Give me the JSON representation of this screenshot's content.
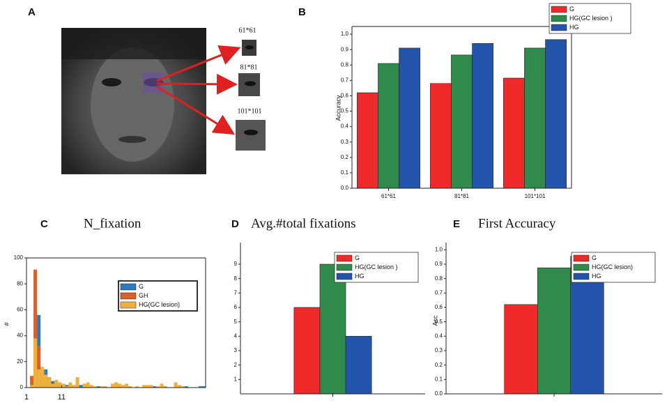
{
  "figure": {
    "panel_labels": [
      "A",
      "B",
      "C",
      "D",
      "E"
    ],
    "image_labels": [
      "61*61",
      "81*81",
      "101*101"
    ]
  },
  "chart_data": [
    {
      "type": "bar",
      "ylabel": "Accuracy",
      "categories": [
        "61*61",
        "81*81",
        "101*101"
      ],
      "series": [
        {
          "name": "G",
          "color": "#ee2a2a",
          "values": [
            0.62,
            0.68,
            0.715
          ]
        },
        {
          "name": "HG(GC lesion  )",
          "color": "#2f8a4c",
          "values": [
            0.81,
            0.865,
            0.91
          ]
        },
        {
          "name": "HG",
          "color": "#2254ac",
          "values": [
            0.91,
            0.94,
            0.965
          ]
        }
      ],
      "ylim": [
        0,
        1.05
      ],
      "yticks": [
        {
          "value": 0,
          "label": "0.0"
        },
        0.1,
        0.2,
        0.3,
        0.4,
        0.5,
        0.6,
        0.7,
        0.8,
        0.9,
        {
          "value": 1,
          "label": "1.0"
        }
      ]
    },
    {
      "type": "histogram",
      "title": "N_fixation",
      "ylabel": "#",
      "bins": [
        1,
        2,
        3,
        4,
        5,
        6,
        7,
        8,
        9,
        10,
        11,
        12,
        13,
        14,
        15,
        16,
        17,
        18,
        19,
        20,
        21,
        22,
        23,
        24,
        25,
        26,
        27,
        28,
        29,
        30,
        31,
        32,
        33,
        34,
        35,
        36,
        37,
        38,
        39,
        40,
        41,
        42,
        43,
        44,
        45,
        46,
        47,
        48,
        49,
        50,
        51,
        52
      ],
      "series": [
        {
          "name": "G",
          "color": "#2b7bbf",
          "values": [
            0,
            0,
            0,
            56,
            3,
            14,
            8,
            5,
            3,
            4,
            2,
            2,
            1,
            1,
            0,
            2,
            1,
            0,
            1,
            0,
            1,
            1,
            0,
            0,
            0,
            1,
            0,
            0,
            1,
            1,
            0,
            0,
            0,
            1,
            0,
            1,
            1,
            0,
            0,
            1,
            0,
            0,
            0,
            0,
            1,
            1,
            0,
            0,
            0,
            1,
            1
          ]
        },
        {
          "name": "GH",
          "color": "#d9602b",
          "values": [
            0,
            9,
            91,
            32,
            6,
            2,
            1,
            0,
            0,
            0,
            0,
            0,
            0,
            0,
            0,
            0,
            0,
            0,
            0,
            0,
            0,
            0,
            0,
            0,
            0,
            0,
            0,
            0,
            0,
            0,
            0,
            0,
            0,
            0,
            0,
            0,
            0,
            0,
            0,
            0,
            0,
            0,
            0,
            0,
            0,
            0,
            0,
            0,
            0,
            0,
            0
          ]
        },
        {
          "name": "HG(GC lesion)",
          "color": "#efb13c",
          "values": [
            0,
            2,
            38,
            14,
            16,
            10,
            8,
            3,
            6,
            4,
            3,
            1,
            4,
            2,
            8,
            0,
            3,
            4,
            2,
            1,
            0,
            1,
            1,
            0,
            3,
            4,
            3,
            2,
            3,
            1,
            0,
            1,
            0,
            2,
            2,
            2,
            0,
            1,
            3,
            1,
            0,
            0,
            4,
            2,
            1,
            0,
            0,
            0,
            0,
            0,
            0
          ]
        }
      ],
      "xlim": [
        1,
        52
      ],
      "ylim": [
        0,
        100
      ],
      "xticks": [
        1,
        11
      ],
      "yticks": [
        0,
        20,
        40,
        60,
        80,
        100
      ]
    },
    {
      "type": "bar",
      "title": "Avg.#total fixations",
      "categories": [
        null
      ],
      "series": [
        {
          "name": "G",
          "color": "#ee2a2a",
          "values": [
            6
          ]
        },
        {
          "name": "HG(GC lesion  )",
          "color": "#2f8a4c",
          "values": [
            9
          ]
        },
        {
          "name": "HG",
          "color": "#2254ac",
          "values": [
            4
          ]
        }
      ],
      "ylim": [
        0,
        10.5
      ],
      "yticks": [
        1,
        2,
        3,
        4,
        5,
        6,
        7,
        8,
        9
      ]
    },
    {
      "type": "bar",
      "title": "First Accuracy",
      "ylabel": "Acc",
      "categories": [
        null
      ],
      "series": [
        {
          "name": "G",
          "color": "#ee2a2a",
          "values": [
            0.62
          ]
        },
        {
          "name": "HG(GC lesion)",
          "color": "#2f8a4c",
          "values": [
            0.875
          ]
        },
        {
          "name": "HG",
          "color": "#2254ac",
          "values": [
            0.955
          ]
        }
      ],
      "ylim": [
        0,
        1.05
      ],
      "yticks": [
        {
          "value": 0,
          "label": "0.0"
        },
        0.1,
        0.2,
        0.3,
        0.4,
        0.5,
        0.6,
        0.7,
        0.8,
        0.9,
        {
          "value": 1,
          "label": "1.0"
        }
      ]
    }
  ]
}
